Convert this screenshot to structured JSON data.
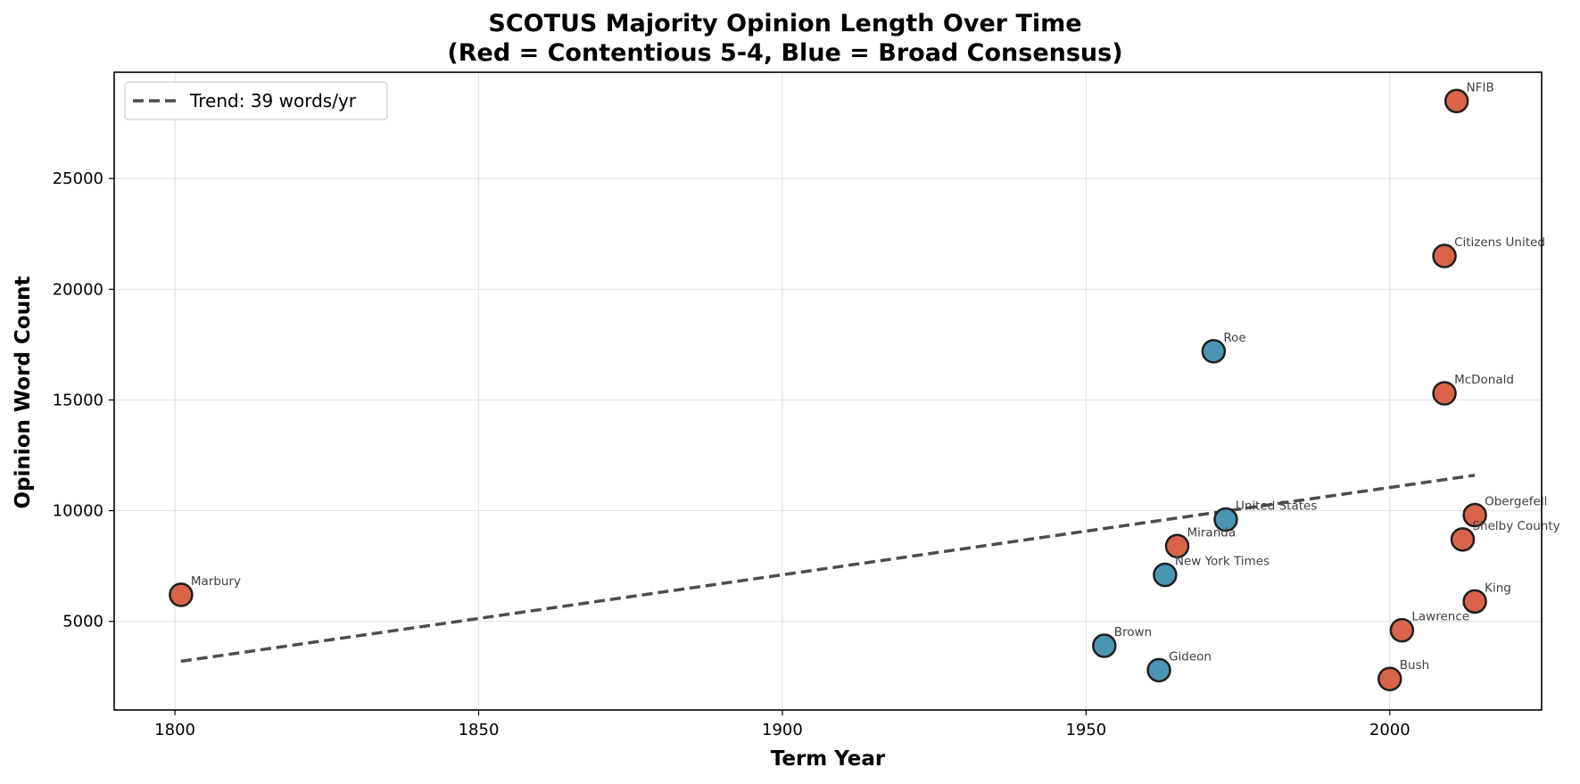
{
  "chart_data": {
    "type": "scatter",
    "title_line1": "SCOTUS Majority Opinion Length Over Time",
    "title_line2": "(Red = Contentious 5-4, Blue = Broad Consensus)",
    "xlabel": "Term Year",
    "ylabel": "Opinion Word Count",
    "xlim": [
      1790,
      2025
    ],
    "ylim": [
      1000,
      29800
    ],
    "x_ticks": [
      1800,
      1850,
      1900,
      1950,
      2000
    ],
    "y_ticks": [
      5000,
      10000,
      15000,
      20000,
      25000
    ],
    "grid": true,
    "legend_position": "top-left",
    "colors": {
      "contentious": "#d9644a",
      "consensus": "#4b95b5",
      "trend": "#4d4d4d",
      "edge": "#1f1f1f"
    },
    "trend": {
      "label": "Trend: 39 words/yr",
      "x": [
        1801,
        2014
      ],
      "y": [
        3200,
        11600
      ]
    },
    "points": [
      {
        "label": "Marbury",
        "x": 1801,
        "y": 6200,
        "group": "contentious"
      },
      {
        "label": "Brown",
        "x": 1953,
        "y": 3900,
        "group": "consensus"
      },
      {
        "label": "Gideon",
        "x": 1962,
        "y": 2800,
        "group": "consensus"
      },
      {
        "label": "New York Times",
        "x": 1963,
        "y": 7100,
        "group": "consensus"
      },
      {
        "label": "Miranda",
        "x": 1965,
        "y": 8400,
        "group": "contentious"
      },
      {
        "label": "Roe",
        "x": 1971,
        "y": 17200,
        "group": "consensus"
      },
      {
        "label": "United States",
        "x": 1973,
        "y": 9600,
        "group": "consensus"
      },
      {
        "label": "Bush",
        "x": 2000,
        "y": 2400,
        "group": "contentious"
      },
      {
        "label": "Lawrence",
        "x": 2002,
        "y": 4600,
        "group": "contentious"
      },
      {
        "label": "McDonald",
        "x": 2009,
        "y": 15300,
        "group": "contentious"
      },
      {
        "label": "Citizens United",
        "x": 2009,
        "y": 21500,
        "group": "contentious"
      },
      {
        "label": "NFIB",
        "x": 2011,
        "y": 28500,
        "group": "contentious"
      },
      {
        "label": "Shelby County",
        "x": 2012,
        "y": 8700,
        "group": "contentious"
      },
      {
        "label": "Obergefell",
        "x": 2014,
        "y": 9800,
        "group": "contentious"
      },
      {
        "label": "King",
        "x": 2014,
        "y": 5900,
        "group": "contentious"
      }
    ]
  }
}
